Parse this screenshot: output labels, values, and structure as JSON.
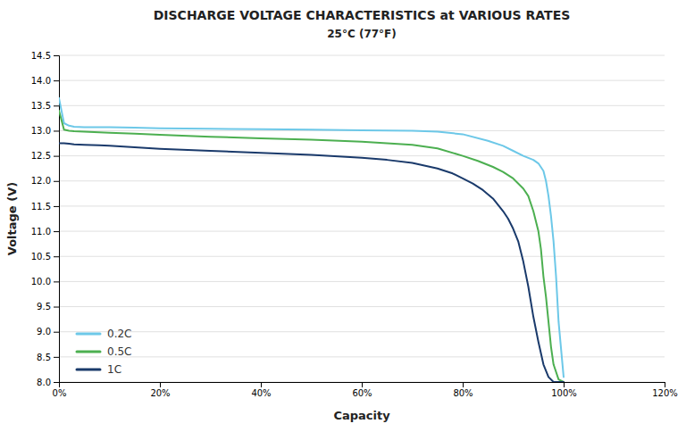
{
  "chart_data": {
    "type": "line",
    "title": "DISCHARGE VOLTAGE CHARACTERISTICS at VARIOUS RATES",
    "subtitle": "25°C (77°F)",
    "x_label": "Capacity",
    "y_label": "Voltage (V)",
    "xlim": [
      0.0,
      1.2
    ],
    "ylim": [
      8.0,
      14.5
    ],
    "xticks": [
      {
        "value": 0.0,
        "label": "0%"
      },
      {
        "value": 0.2,
        "label": "20%"
      },
      {
        "value": 0.4,
        "label": "40%"
      },
      {
        "value": 0.6,
        "label": "60%"
      },
      {
        "value": 0.8,
        "label": "80%"
      },
      {
        "value": 1.0,
        "label": "100%"
      },
      {
        "value": 1.2,
        "label": "120%"
      }
    ],
    "yticks": [
      {
        "value": 8.0,
        "label": "8.0"
      },
      8.5,
      {
        "value": 9.0,
        "label": "9.0"
      },
      9.5,
      {
        "value": 10.0,
        "label": "10.0"
      },
      10.5,
      {
        "value": 11.0,
        "label": "11.0"
      },
      11.5,
      {
        "value": 12.0,
        "label": "12.0"
      },
      12.5,
      {
        "value": 13.0,
        "label": "13.0"
      },
      13.5,
      {
        "value": 14.0,
        "label": "14.0"
      },
      14.5
    ],
    "grid": true,
    "legend": "lower left",
    "series": [
      {
        "name": "0.2C",
        "color": "#6dc8e8",
        "x": [
          0.0,
          0.01,
          0.02,
          0.03,
          0.05,
          0.08,
          0.1,
          0.15,
          0.2,
          0.3,
          0.4,
          0.5,
          0.6,
          0.7,
          0.75,
          0.8,
          0.85,
          0.88,
          0.9,
          0.92,
          0.94,
          0.95,
          0.96,
          0.965,
          0.97,
          0.975,
          0.98,
          0.985,
          0.99,
          1.0
        ],
        "values": [
          13.65,
          13.15,
          13.1,
          13.08,
          13.07,
          13.07,
          13.07,
          13.06,
          13.05,
          13.04,
          13.03,
          13.02,
          13.01,
          13.0,
          12.98,
          12.93,
          12.8,
          12.7,
          12.6,
          12.5,
          12.42,
          12.35,
          12.2,
          12.0,
          11.7,
          11.3,
          10.8,
          10.1,
          9.2,
          8.1
        ]
      },
      {
        "name": "0.5C",
        "color": "#4caf50",
        "x": [
          0.0,
          0.01,
          0.02,
          0.03,
          0.05,
          0.08,
          0.1,
          0.15,
          0.2,
          0.3,
          0.4,
          0.5,
          0.6,
          0.7,
          0.75,
          0.8,
          0.83,
          0.86,
          0.88,
          0.9,
          0.92,
          0.93,
          0.94,
          0.95,
          0.955,
          0.96,
          0.965,
          0.97,
          0.975,
          0.98,
          0.99,
          1.0
        ],
        "values": [
          13.4,
          13.02,
          13.0,
          12.99,
          12.98,
          12.97,
          12.96,
          12.94,
          12.92,
          12.88,
          12.85,
          12.82,
          12.78,
          12.72,
          12.65,
          12.5,
          12.4,
          12.28,
          12.18,
          12.05,
          11.85,
          11.7,
          11.4,
          11.0,
          10.65,
          10.1,
          9.7,
          9.2,
          8.7,
          8.35,
          8.05,
          8.0
        ]
      },
      {
        "name": "1C",
        "color": "#1a3a6b",
        "x": [
          0.0,
          0.01,
          0.02,
          0.03,
          0.05,
          0.08,
          0.1,
          0.15,
          0.2,
          0.3,
          0.4,
          0.5,
          0.6,
          0.65,
          0.7,
          0.75,
          0.78,
          0.8,
          0.82,
          0.84,
          0.86,
          0.88,
          0.89,
          0.9,
          0.91,
          0.92,
          0.93,
          0.94,
          0.95,
          0.96,
          0.97,
          0.98,
          0.99,
          1.0
        ],
        "values": [
          12.75,
          12.75,
          12.74,
          12.73,
          12.72,
          12.71,
          12.7,
          12.67,
          12.64,
          12.6,
          12.56,
          12.52,
          12.46,
          12.42,
          12.36,
          12.25,
          12.15,
          12.05,
          11.95,
          11.82,
          11.65,
          11.4,
          11.25,
          11.05,
          10.8,
          10.4,
          9.9,
          9.3,
          8.8,
          8.35,
          8.1,
          8.0,
          8.0,
          8.0
        ]
      }
    ]
  }
}
